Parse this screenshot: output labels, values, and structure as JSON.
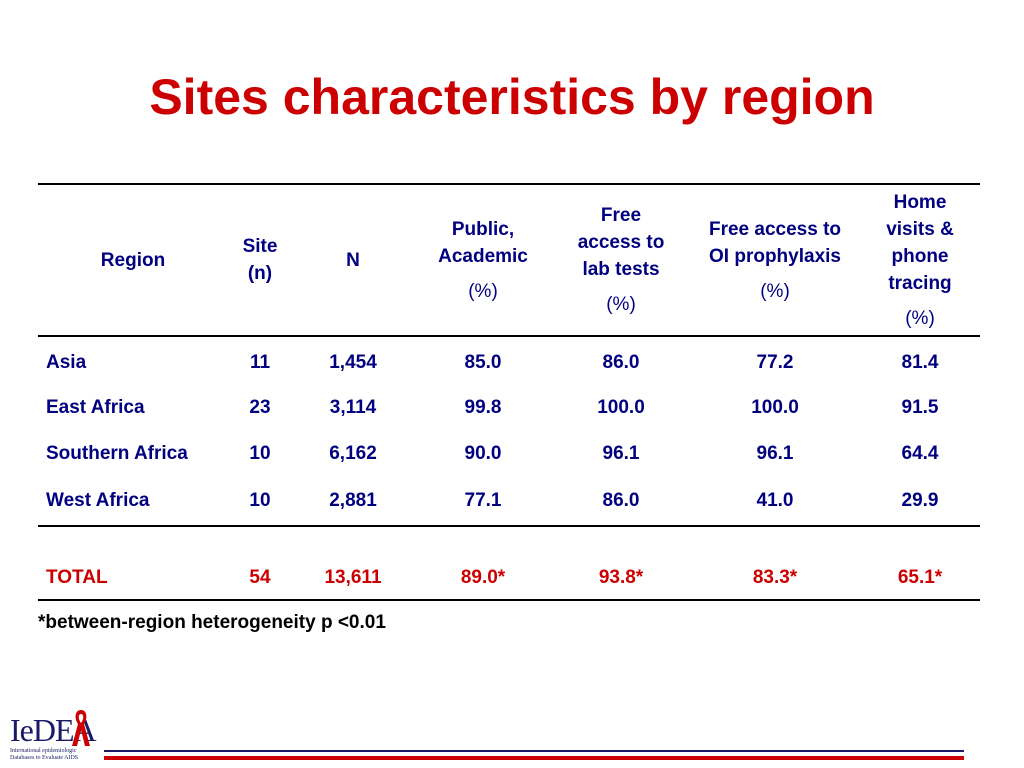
{
  "slide": {
    "title": "Sites characteristics by region"
  },
  "table": {
    "headers": [
      {
        "label": "Region",
        "unit": ""
      },
      {
        "label": "Site (n)",
        "unit": ""
      },
      {
        "label": "N",
        "unit": ""
      },
      {
        "label": "Public, Academic",
        "unit": "(%)"
      },
      {
        "label": "Free access to lab tests",
        "unit": "(%)"
      },
      {
        "label": "Free access to OI prophylaxis",
        "unit": "(%)"
      },
      {
        "label": "Home visits & phone tracing",
        "unit": "(%)"
      }
    ],
    "rows": [
      [
        "Asia",
        "11",
        "1,454",
        "85.0",
        "86.0",
        "77.2",
        "81.4"
      ],
      [
        "East Africa",
        "23",
        "3,114",
        "99.8",
        "100.0",
        "100.0",
        "91.5"
      ],
      [
        "Southern Africa",
        "10",
        "6,162",
        "90.0",
        "96.1",
        "96.1",
        "64.4"
      ],
      [
        "West Africa",
        "10",
        "2,881",
        "77.1",
        "86.0",
        "41.0",
        "29.9"
      ]
    ],
    "total": [
      "TOTAL",
      "54",
      "13,611",
      "89.0*",
      "93.8*",
      "83.3*",
      "65.1*"
    ]
  },
  "footnote": "*between-region heterogeneity p <0.01",
  "logo": {
    "name": "IeDEA",
    "subtitle_line1": "International epidemiologic",
    "subtitle_line2": "Databases to Evaluate AIDS"
  },
  "colors": {
    "title": "#cc0000",
    "table_text": "#000080",
    "total_text": "#cc0000",
    "footer_blue": "#1a1a66",
    "footer_red": "#cc0000"
  }
}
